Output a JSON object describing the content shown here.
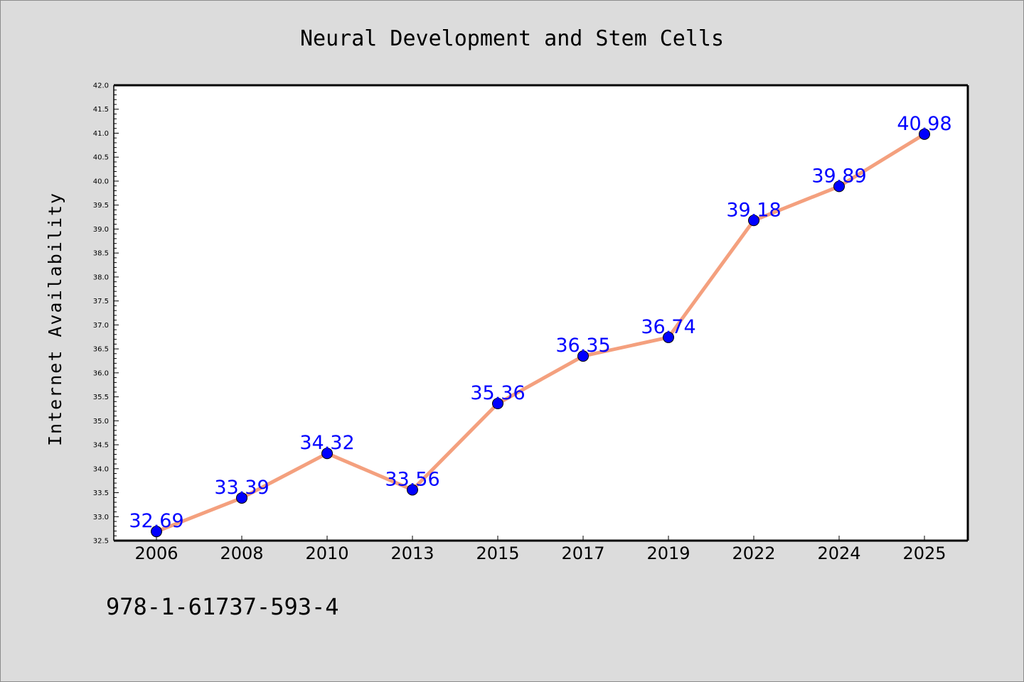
{
  "chart_data": {
    "type": "line",
    "title": "Neural Development and Stem Cells",
    "xlabel": "",
    "ylabel": "Internet Availability",
    "categories": [
      "2006",
      "2008",
      "2010",
      "2013",
      "2015",
      "2017",
      "2019",
      "2022",
      "2024",
      "2025"
    ],
    "series": [
      {
        "values": [
          32.69,
          33.39,
          34.32,
          33.56,
          35.36,
          36.35,
          36.74,
          39.18,
          39.89,
          40.98
        ],
        "labels": [
          "32.69",
          "33.39",
          "34.32",
          "33.56",
          "35.36",
          "36.35",
          "36.74",
          "39.18",
          "39.89",
          "40.98"
        ]
      }
    ],
    "ylim": [
      32.5,
      42.0
    ],
    "yticks": [
      "32.5",
      "33.0",
      "33.5",
      "34.0",
      "34.5",
      "35.0",
      "35.5",
      "36.0",
      "36.5",
      "37.0",
      "37.5",
      "38.0",
      "38.5",
      "39.0",
      "39.5",
      "40.0",
      "40.5",
      "41.0",
      "41.5",
      "42.0"
    ],
    "grid": false,
    "colors": {
      "background": "#dcdcdc",
      "plot_background": "#ffffff",
      "line": "#f4a07e",
      "marker": "#0000ff",
      "data_label": "#0000ff",
      "text": "#000000"
    }
  },
  "footer": {
    "isbn": "978-1-61737-593-4"
  }
}
